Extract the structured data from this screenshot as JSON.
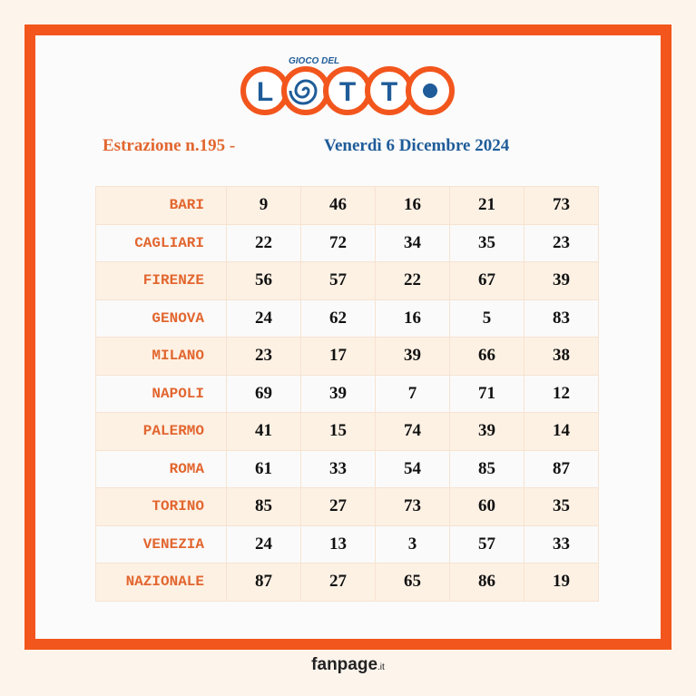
{
  "logo": {
    "top": "GIOCO DEL",
    "letters": [
      "L",
      "T",
      "T"
    ]
  },
  "header": {
    "draw": "Estrazione n.195 -",
    "date": "Venerdì 6 Dicembre 2024"
  },
  "table": {
    "rows": [
      [
        "BARI",
        9,
        46,
        16,
        21,
        73
      ],
      [
        "CAGLIARI",
        22,
        72,
        34,
        35,
        23
      ],
      [
        "FIRENZE",
        56,
        57,
        22,
        67,
        39
      ],
      [
        "GENOVA",
        24,
        62,
        16,
        5,
        83
      ],
      [
        "MILANO",
        23,
        17,
        39,
        66,
        38
      ],
      [
        "NAPOLI",
        69,
        39,
        7,
        71,
        12
      ],
      [
        "PALERMO",
        41,
        15,
        74,
        39,
        14
      ],
      [
        "ROMA",
        61,
        33,
        54,
        85,
        87
      ],
      [
        "TORINO",
        85,
        27,
        73,
        60,
        35
      ],
      [
        "VENEZIA",
        24,
        13,
        3,
        57,
        33
      ],
      [
        "NAZIONALE",
        87,
        27,
        65,
        86,
        19
      ]
    ]
  },
  "footer": {
    "brand": "fanpage",
    "suffix": ".it"
  }
}
